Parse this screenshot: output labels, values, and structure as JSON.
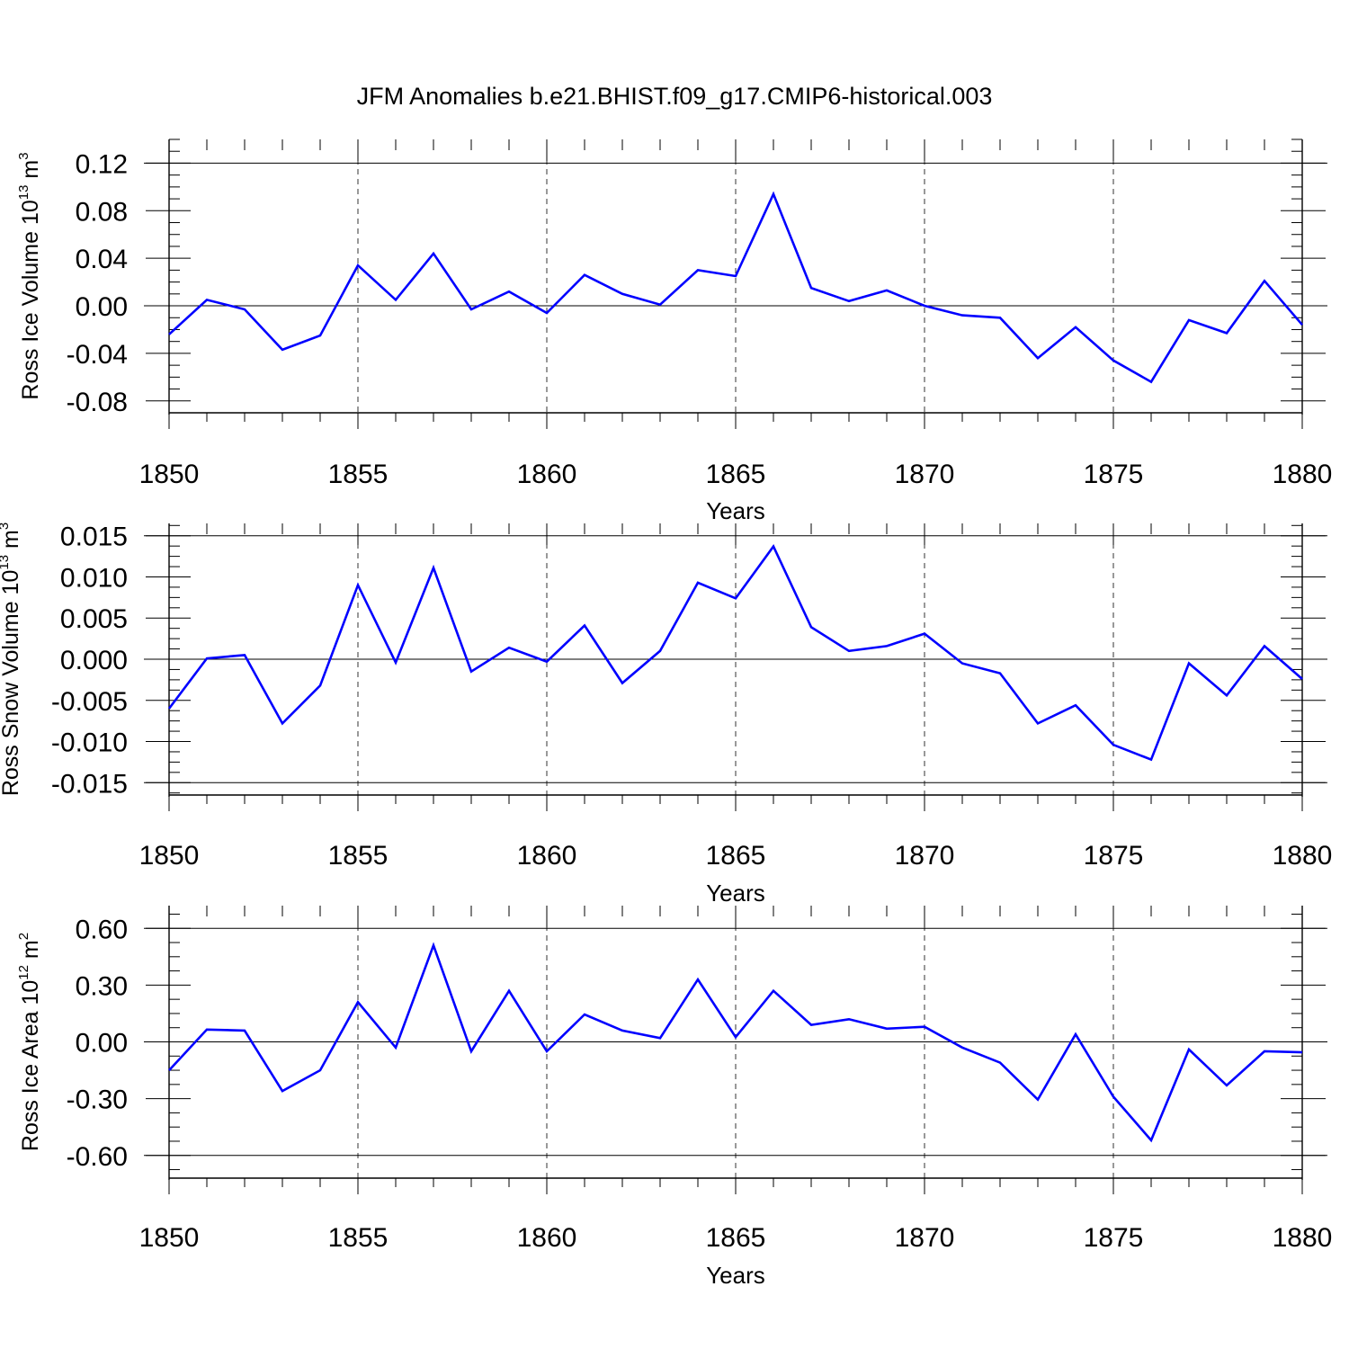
{
  "title": "JFM Anomalies b.e21.BHIST.f09_g17.CMIP6-historical.003",
  "chart_data": [
    {
      "type": "line",
      "ylabel": {
        "main": "Ross Ice Volume 10",
        "exp": "13",
        "unit": " m",
        "unit_exp": "3"
      },
      "xlabel": "Years",
      "xlim": [
        1850,
        1880
      ],
      "ylim": [
        -0.09,
        0.14
      ],
      "xticks": [
        1850,
        1855,
        1860,
        1865,
        1870,
        1875,
        1880
      ],
      "xtick_labels": [
        "1850",
        "1855",
        "1860",
        "1865",
        "1870",
        "1875",
        "1880"
      ],
      "yticks": [
        0.12,
        0.08,
        0.04,
        0.0,
        -0.04,
        -0.08
      ],
      "ytick_labels": [
        "0.12",
        "0.08",
        "0.04",
        "0.00",
        "-0.04",
        "-0.08"
      ],
      "ymajor_lines": [
        0.12,
        0.0
      ],
      "grid": "vertical dashed at 1855, 1860, 1865, 1870, 1875",
      "series_color": "#0000ff",
      "x": [
        1850,
        1851,
        1852,
        1853,
        1854,
        1855,
        1856,
        1857,
        1858,
        1859,
        1860,
        1861,
        1862,
        1863,
        1864,
        1865,
        1866,
        1867,
        1868,
        1869,
        1870,
        1871,
        1872,
        1873,
        1874,
        1875,
        1876,
        1877,
        1878,
        1879,
        1880
      ],
      "values": [
        -0.024,
        0.005,
        -0.003,
        -0.037,
        -0.025,
        0.034,
        0.005,
        0.044,
        -0.003,
        0.012,
        -0.006,
        0.026,
        0.01,
        0.001,
        0.03,
        0.025,
        0.094,
        0.015,
        0.004,
        0.013,
        0.0,
        -0.008,
        -0.01,
        -0.044,
        -0.018,
        -0.046,
        -0.064,
        -0.012,
        -0.023,
        0.021,
        -0.016
      ]
    },
    {
      "type": "line",
      "ylabel": {
        "main": "Ross Snow Volume 10",
        "exp": "13",
        "unit": " m",
        "unit_exp": "3"
      },
      "xlabel": "Years",
      "xlim": [
        1850,
        1880
      ],
      "ylim": [
        -0.0165,
        0.0165
      ],
      "xticks": [
        1850,
        1855,
        1860,
        1865,
        1870,
        1875,
        1880
      ],
      "xtick_labels": [
        "1850",
        "1855",
        "1860",
        "1865",
        "1870",
        "1875",
        "1880"
      ],
      "yticks": [
        0.015,
        0.01,
        0.005,
        0.0,
        -0.005,
        -0.01,
        -0.015
      ],
      "ytick_labels": [
        "0.015",
        "0.010",
        "0.005",
        "0.000",
        "-0.005",
        "-0.010",
        "-0.015"
      ],
      "ymajor_lines": [
        0.015,
        0.0,
        -0.015
      ],
      "grid": "vertical dashed at 1855, 1860, 1865, 1870, 1875",
      "series_color": "#0000ff",
      "x": [
        1850,
        1851,
        1852,
        1853,
        1854,
        1855,
        1856,
        1857,
        1858,
        1859,
        1860,
        1861,
        1862,
        1863,
        1864,
        1865,
        1866,
        1867,
        1868,
        1869,
        1870,
        1871,
        1872,
        1873,
        1874,
        1875,
        1876,
        1877,
        1878,
        1879,
        1880
      ],
      "values": [
        -0.006,
        0.0001,
        0.0005,
        -0.0078,
        -0.0032,
        0.009,
        -0.0004,
        0.0111,
        -0.0015,
        0.0014,
        -0.0003,
        0.0041,
        -0.0029,
        0.001,
        0.0093,
        0.0074,
        0.0137,
        0.0039,
        0.001,
        0.0016,
        0.0031,
        -0.0005,
        -0.0017,
        -0.0078,
        -0.0056,
        -0.0104,
        -0.0122,
        -0.0005,
        -0.0044,
        0.0016,
        -0.0024
      ]
    },
    {
      "type": "line",
      "ylabel": {
        "main": "Ross Ice Area 10",
        "exp": "12",
        "unit": " m",
        "unit_exp": "2"
      },
      "xlabel": "Years",
      "xlim": [
        1850,
        1880
      ],
      "ylim": [
        -0.72,
        0.72
      ],
      "xticks": [
        1850,
        1855,
        1860,
        1865,
        1870,
        1875,
        1880
      ],
      "xtick_labels": [
        "1850",
        "1855",
        "1860",
        "1865",
        "1870",
        "1875",
        "1880"
      ],
      "yticks": [
        0.6,
        0.3,
        0.0,
        -0.3,
        -0.6
      ],
      "ytick_labels": [
        "0.60",
        "0.30",
        "0.00",
        "-0.30",
        "-0.60"
      ],
      "ymajor_lines": [
        0.6,
        0.0,
        -0.6
      ],
      "grid": "vertical dashed at 1855, 1860, 1865, 1870, 1875",
      "series_color": "#0000ff",
      "x": [
        1850,
        1851,
        1852,
        1853,
        1854,
        1855,
        1856,
        1857,
        1858,
        1859,
        1860,
        1861,
        1862,
        1863,
        1864,
        1865,
        1866,
        1867,
        1868,
        1869,
        1870,
        1871,
        1872,
        1873,
        1874,
        1875,
        1876,
        1877,
        1878,
        1879,
        1880
      ],
      "values": [
        -0.15,
        0.065,
        0.06,
        -0.26,
        -0.15,
        0.21,
        -0.03,
        0.51,
        -0.05,
        0.27,
        -0.05,
        0.145,
        0.06,
        0.02,
        0.33,
        0.025,
        0.27,
        0.09,
        0.12,
        0.07,
        0.08,
        -0.03,
        -0.11,
        -0.305,
        0.04,
        -0.29,
        -0.52,
        -0.04,
        -0.23,
        -0.05,
        -0.055
      ]
    }
  ]
}
